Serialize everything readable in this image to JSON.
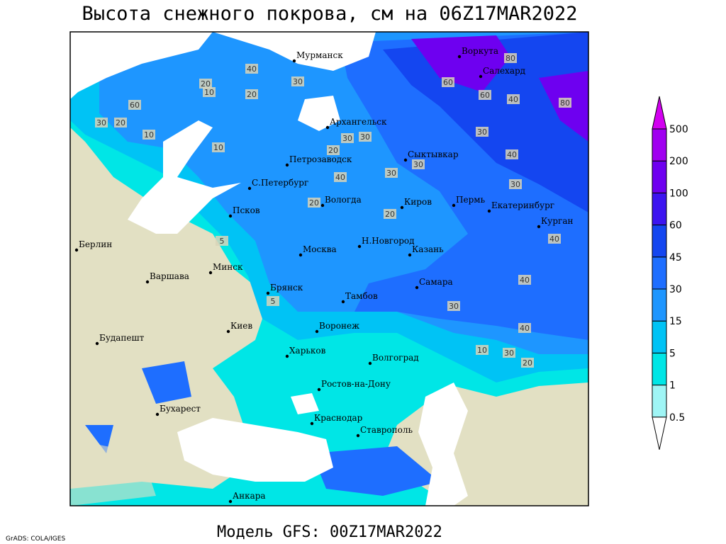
{
  "header": {
    "title": "Высота снежного покрова, см на 06Z17MAR2022"
  },
  "footer": {
    "model": "Модель GFS: 00Z17MAR2022",
    "credit": "GrADS: COLA/IGES"
  },
  "colorbar": {
    "levels": [
      0.5,
      1,
      5,
      15,
      30,
      45,
      60,
      100,
      200,
      500
    ],
    "colors": [
      "#ffffff",
      "#9ff5f5",
      "#00e6e6",
      "#00c3f5",
      "#1e96ff",
      "#1e6eff",
      "#1446f0",
      "#3c14f0",
      "#6e00f0",
      "#a000f0",
      "#d200f0"
    ]
  },
  "cities": [
    "Мурманск",
    "Воркута",
    "Салехард",
    "Архангельск",
    "Сыктывкар",
    "Петрозаводск",
    "С.Петербург",
    "Вологда",
    "Киров",
    "Пермь",
    "Екатеринбург",
    "Курган",
    "Псков",
    "Н.Новгород",
    "Казань",
    "Берлин",
    "Москва",
    "Минск",
    "Варшава",
    "Самара",
    "Брянск",
    "Тамбов",
    "Киев",
    "Воронеж",
    "Будапешт",
    "Харьков",
    "Волгоград",
    "Ростов-на-Дону",
    "Бухарест",
    "Краснодар",
    "Ставрополь",
    "Анкара"
  ],
  "contour_labels": [
    20,
    10,
    60,
    30,
    20,
    40,
    30,
    20,
    60,
    80,
    60,
    40,
    80,
    30,
    40,
    30,
    30,
    20,
    30,
    40,
    30,
    40,
    20,
    10,
    5,
    5,
    40,
    30,
    20,
    10,
    40,
    30,
    20,
    10,
    30
  ]
}
